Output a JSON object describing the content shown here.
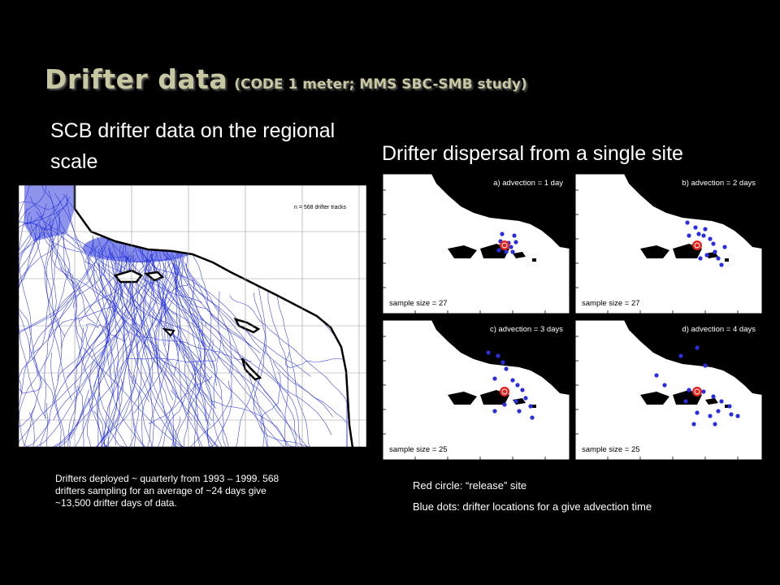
{
  "title": {
    "main": "Drifter data",
    "sub": "(CODE 1 meter; MMS SBC-SMB study)"
  },
  "left_heading": "SCB drifter data on the regional scale",
  "right_heading": "Drifter dispersal from a single site",
  "left_map": {
    "legend": "n = 568 drifter tracks",
    "track_color": "#1e2ad8"
  },
  "panels": [
    {
      "label": "a) advection = 1 day",
      "sample": "sample size = 27"
    },
    {
      "label": "b) advection = 2 days",
      "sample": "sample size = 27"
    },
    {
      "label": "c) advection = 3 days",
      "sample": "sample size = 25"
    },
    {
      "label": "d) advection = 4 days",
      "sample": "sample size = 25"
    }
  ],
  "notes": {
    "left": "Drifters deployed ~ quarterly from 1993 – 1999. 568 drifters sampling for an average of ~24 days give ~13,500 drifter days of data.",
    "release": "Red circle: “release” site",
    "blue": "Blue dots: drifter locations for a give advection time"
  },
  "colors": {
    "title": "#c7c8a2",
    "release_circle": "#e8201c",
    "drifter_dot": "#2a2ee0",
    "land": "#000000"
  }
}
